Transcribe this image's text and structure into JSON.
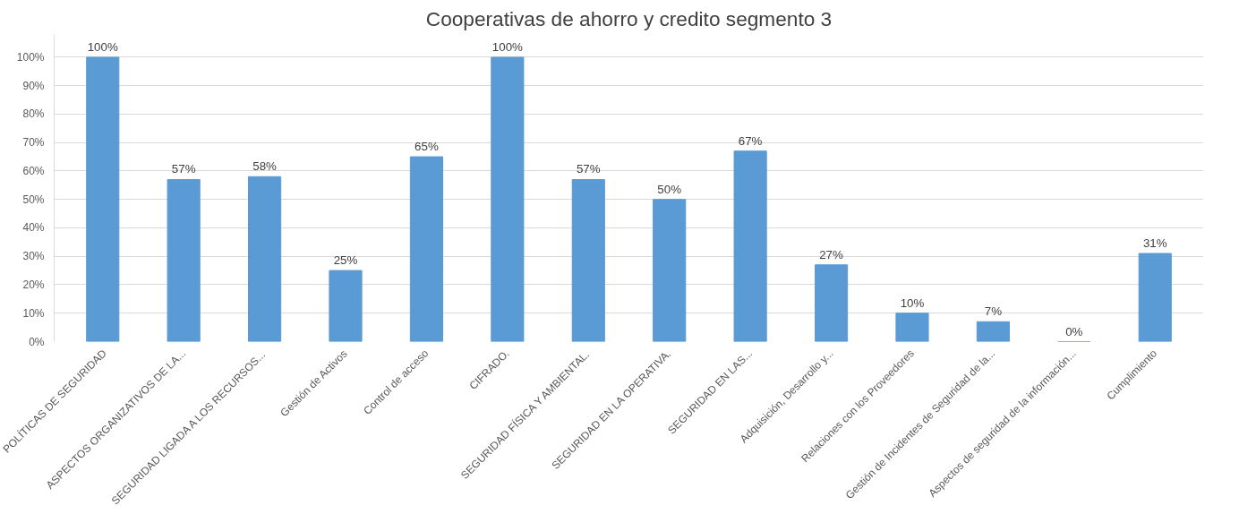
{
  "chart_data": {
    "type": "bar",
    "title": "Cooperativas de ahorro y credito segmento 3",
    "categories": [
      "POLÍTICAS DE SEGURIDAD",
      "ASPECTOS ORGANIZATIVOS DE LA...",
      "SEGURIDAD LIGADA A LOS RECURSOS...",
      "Gestión de Activos",
      "Control de acceso",
      "CIFRADO.",
      "SEGURIDAD FÍSICA Y AMBIENTAL.",
      "SEGURIDAD EN LA OPERATIVA.",
      "SEGURIDAD EN LAS...",
      "Adquisición, Desarrollo y...",
      "Relaciones con los Proveedores",
      "Gestión de Incidentes de Seguridad de la...",
      "Aspectos de seguridad de la información...",
      "Cumplimiento"
    ],
    "values": [
      100,
      57,
      58,
      25,
      65,
      100,
      57,
      50,
      67,
      27,
      10,
      7,
      0,
      31
    ],
    "value_labels": [
      "100%",
      "57%",
      "58%",
      "25%",
      "65%",
      "100%",
      "57%",
      "50%",
      "67%",
      "27%",
      "10%",
      "7%",
      "0%",
      "31%"
    ],
    "color": "#5b9bd5",
    "ylim": [
      0,
      108
    ],
    "yticks": [
      {
        "value": 0,
        "label": "0%"
      },
      {
        "value": 10,
        "label": "10%"
      },
      {
        "value": 20,
        "label": "20%"
      },
      {
        "value": 30,
        "label": "30%"
      },
      {
        "value": 40,
        "label": "40%"
      },
      {
        "value": 50,
        "label": "50%"
      },
      {
        "value": 60,
        "label": "60%"
      },
      {
        "value": 70,
        "label": "70%"
      },
      {
        "value": 80,
        "label": "80%"
      },
      {
        "value": 90,
        "label": "90%"
      },
      {
        "value": 100,
        "label": "100%"
      }
    ],
    "grid": "y"
  }
}
